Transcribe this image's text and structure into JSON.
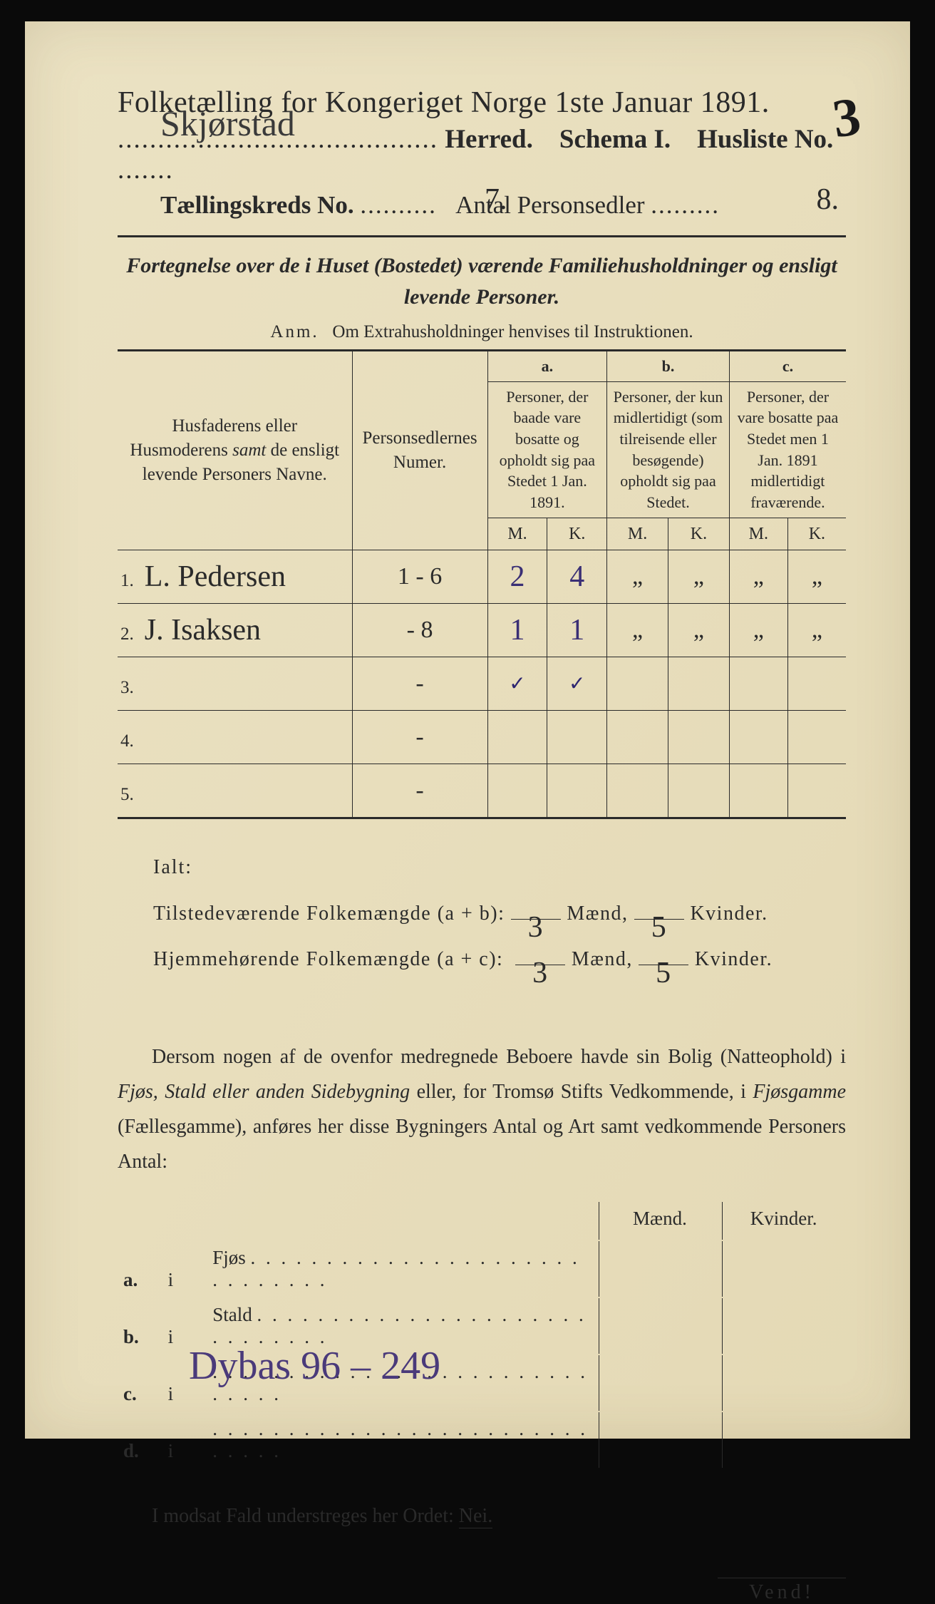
{
  "header": {
    "title": "Folketælling for Kongeriget Norge 1ste Januar 1891.",
    "herred_hw": "Skjørstad",
    "herred_label": "Herred.",
    "schema": "Schema I.",
    "husliste_label": "Husliste No.",
    "husliste_hw": "3",
    "kreds_label": "Tællingskreds No.",
    "kreds_hw": "7.",
    "antal_label": "Antal Personsedler",
    "antal_hw": "8."
  },
  "subtitle": {
    "line1a": "Fortegnelse over de i Huset (Bostedet) værende Familiehusholdninger og ",
    "line1b": "ensligt",
    "line2": "levende Personer."
  },
  "anm": {
    "prefix": "Anm.",
    "text": "Om Extrahusholdninger henvises til Instruktionen."
  },
  "table": {
    "col1": "Husfaderens eller Husmoderens samt de ensligt levende Personers Navne.",
    "col1_italic_word": "samt",
    "col2": "Personsedlernes Numer.",
    "a_label": "a.",
    "a_text": "Personer, der baade vare bosatte og opholdt sig paa Stedet 1 Jan. 1891.",
    "b_label": "b.",
    "b_text": "Personer, der kun midlertidigt (som tilreisende eller besøgende) opholdt sig paa Stedet.",
    "c_label": "c.",
    "c_text": "Personer, der vare bosatte paa Stedet men 1 Jan. 1891 midlertidigt fraværende.",
    "m": "M.",
    "k": "K.",
    "rows": [
      {
        "n": "1.",
        "name": "L. Pedersen",
        "num": "1 - 6",
        "am": "2",
        "ak": "4",
        "bm": "„",
        "bk": "„",
        "cm": "„",
        "ck": "„"
      },
      {
        "n": "2.",
        "name": "J. Isaksen",
        "num": "- 8",
        "am": "1",
        "ak": "1",
        "bm": "„",
        "bk": "„",
        "cm": "„",
        "ck": "„"
      },
      {
        "n": "3.",
        "name": "",
        "num": "-",
        "am": "✓",
        "ak": "✓",
        "bm": "",
        "bk": "",
        "cm": "",
        "ck": ""
      },
      {
        "n": "4.",
        "name": "",
        "num": "-",
        "am": "",
        "ak": "",
        "bm": "",
        "bk": "",
        "cm": "",
        "ck": ""
      },
      {
        "n": "5.",
        "name": "",
        "num": "-",
        "am": "",
        "ak": "",
        "bm": "",
        "bk": "",
        "cm": "",
        "ck": ""
      }
    ]
  },
  "ialt": {
    "label": "Ialt:",
    "line1_a": "Tilstedeværende Folkemængde (a + b):",
    "line1_m": "3",
    "line1_k": "5",
    "line2_a": "Hjemmehørende Folkemængde (a + c):",
    "line2_m": "3",
    "line2_k": "5",
    "maend": "Mænd,",
    "kvinder": "Kvinder."
  },
  "para": {
    "text1": "Dersom nogen af de ovenfor medregnede Beboere havde sin Bolig (Natteophold) i ",
    "it1": "Fjøs, Stald eller anden Sidebygning",
    "text2": " eller, for Tromsø Stifts Vedkommende, i ",
    "it2": "Fjøsgamme",
    "text3": " (Fællesgamme), anføres her disse Bygningers Antal og Art samt vedkommende Personers Antal:"
  },
  "lower": {
    "maend": "Mænd.",
    "kvinder": "Kvinder.",
    "rows": [
      {
        "k": "a.",
        "i": "i",
        "label": "Fjøs"
      },
      {
        "k": "b.",
        "i": "i",
        "label": "Stald"
      },
      {
        "k": "c.",
        "i": "i",
        "label": ""
      },
      {
        "k": "d.",
        "i": "i",
        "label": ""
      }
    ]
  },
  "modsat": {
    "text": "I modsat Fald understreges her Ordet: ",
    "nei": "Nei."
  },
  "vend": "Vend!",
  "bottom_hw": "Dybas 96 – 249"
}
